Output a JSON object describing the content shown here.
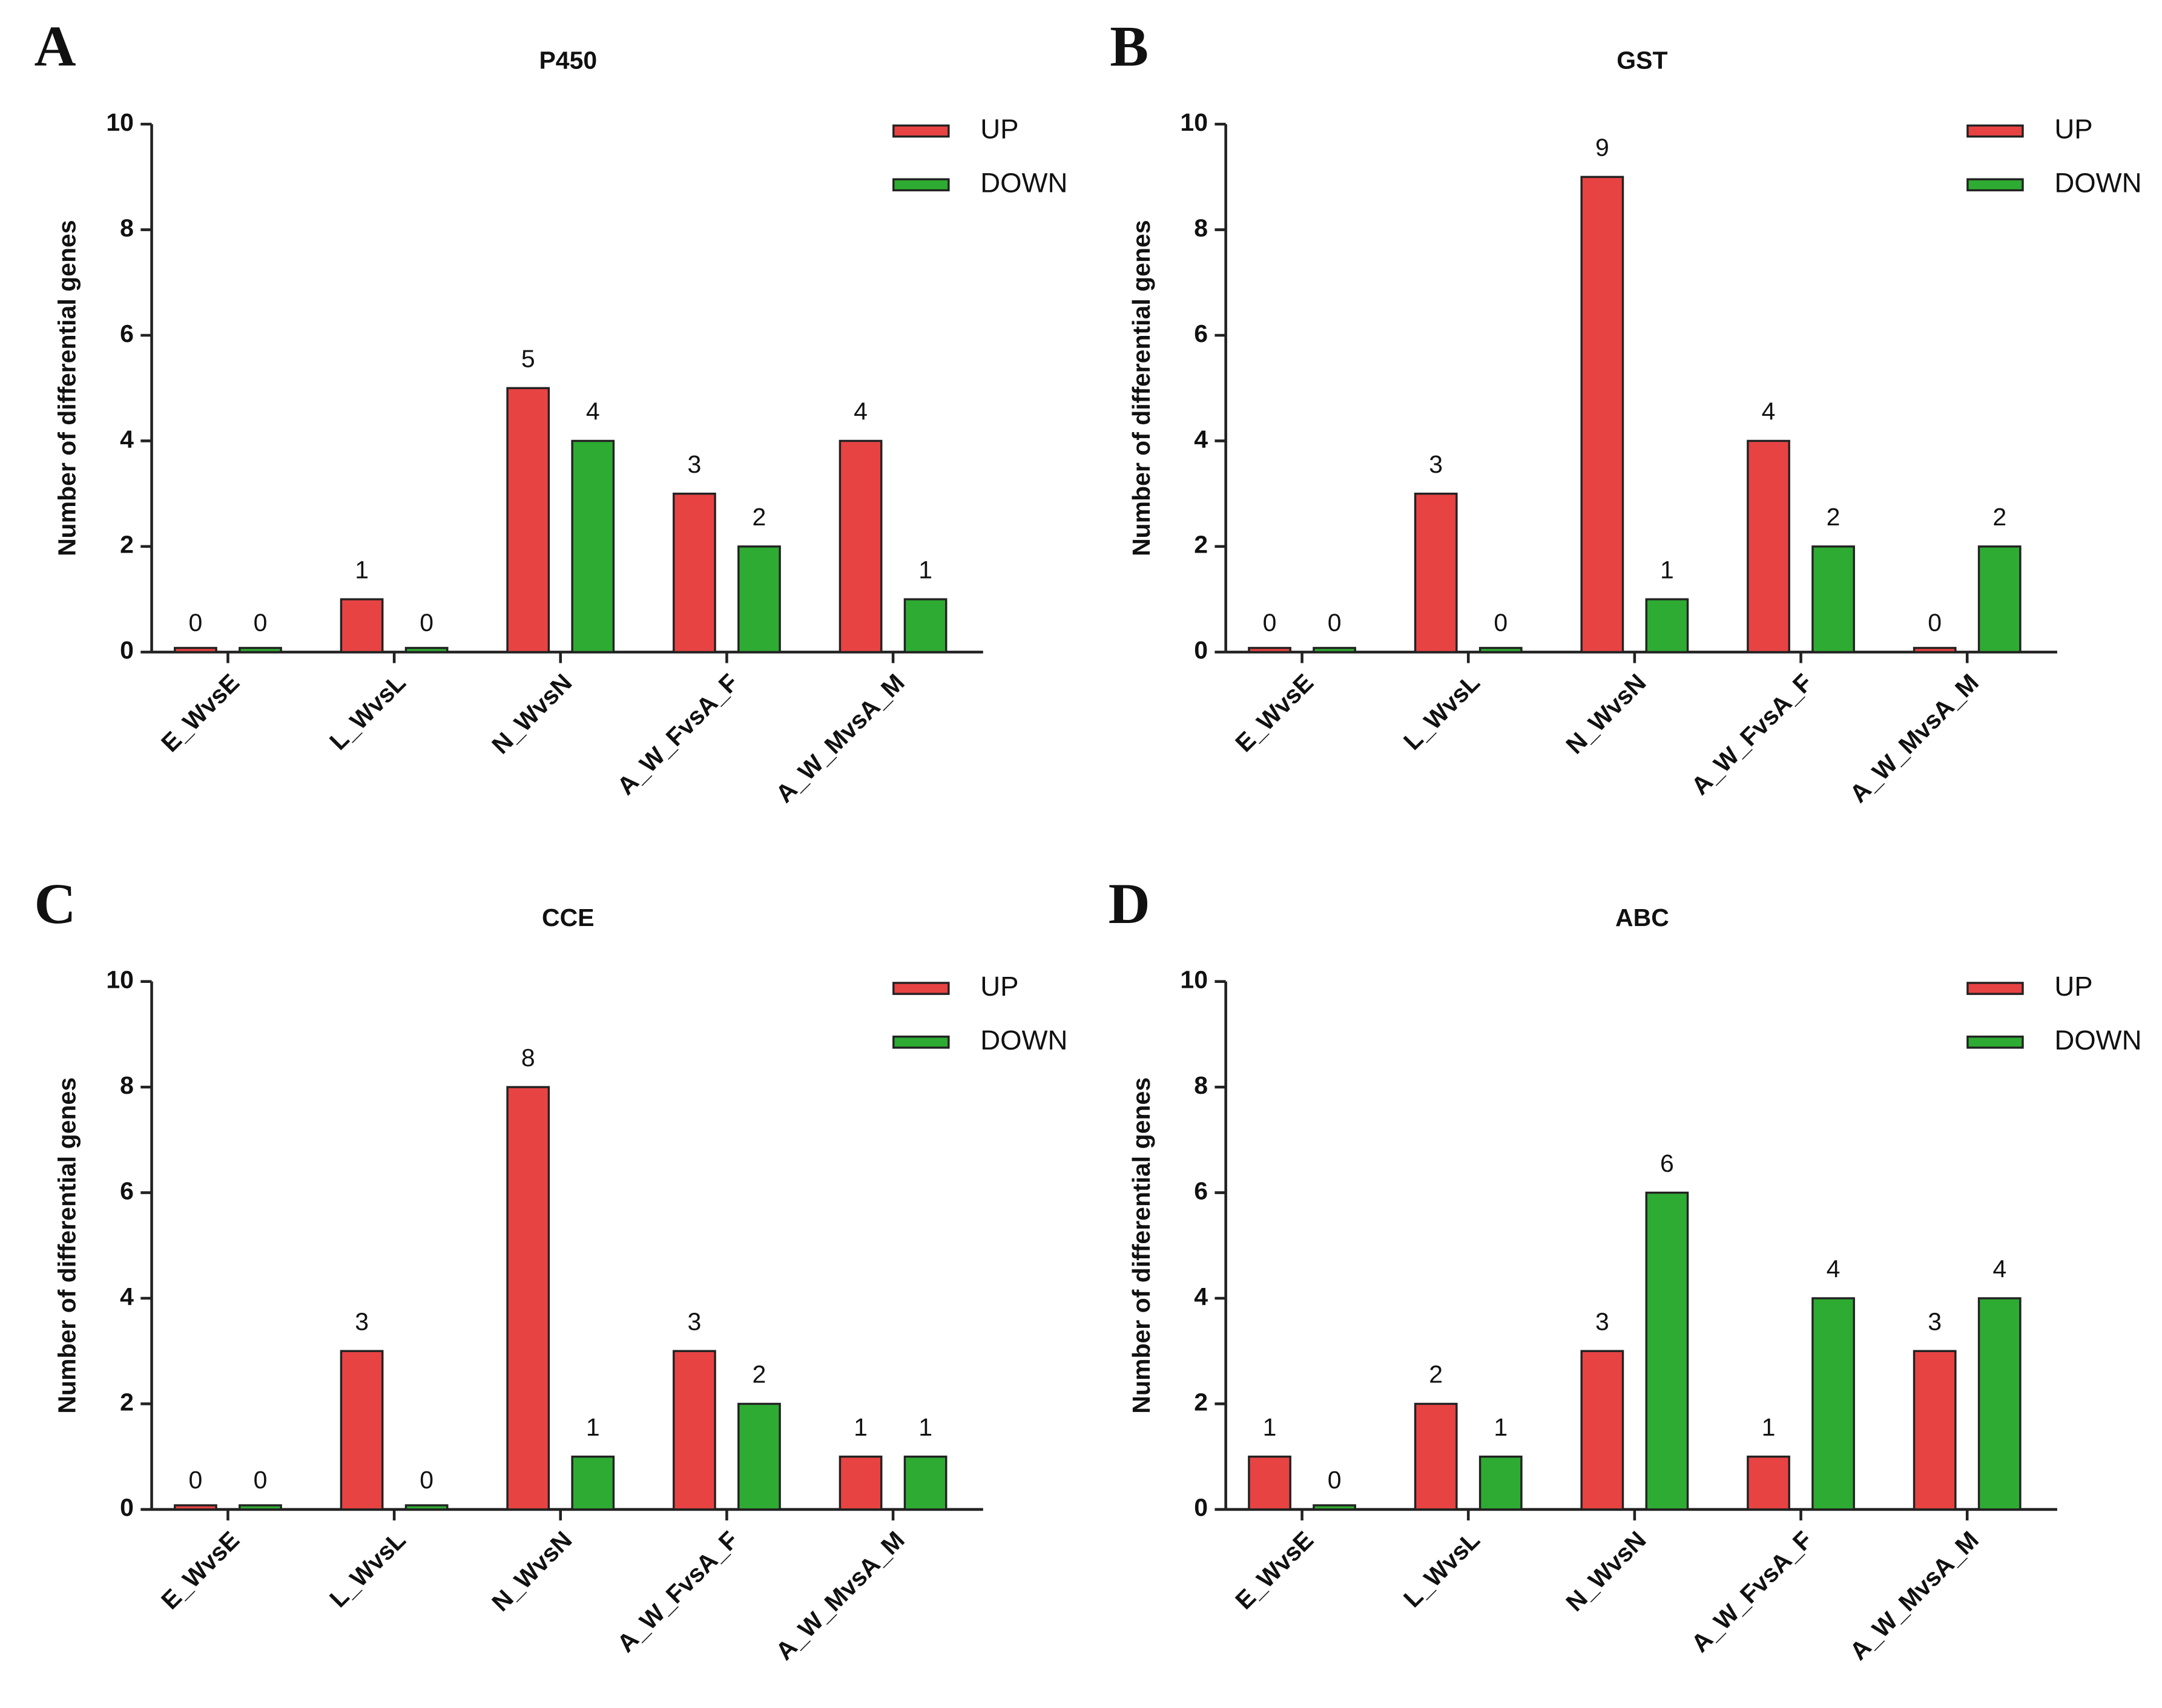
{
  "chart_data": [
    {
      "type": "bar",
      "panel_label": "A",
      "title": "P450",
      "y_label": "Number of differential genes",
      "categories": [
        "E_WvsE",
        "L_WvsL",
        "N_WvsN",
        "A_W_FvsA_F",
        "A_W_MvsA_M"
      ],
      "series": [
        {
          "name": "UP",
          "color": "#e84343",
          "values": [
            0,
            1,
            5,
            3,
            4
          ]
        },
        {
          "name": "DOWN",
          "color": "#2eab32",
          "values": [
            0,
            0,
            4,
            2,
            1
          ]
        }
      ],
      "ylim": [
        0,
        10
      ],
      "yticks": [
        0,
        2,
        4,
        6,
        8,
        10
      ],
      "legend": "top-right"
    },
    {
      "type": "bar",
      "panel_label": "B",
      "title": "GST",
      "y_label": "Number of differential genes",
      "categories": [
        "E_WvsE",
        "L_WvsL",
        "N_WvsN",
        "A_W_FvsA_F",
        "A_W_MvsA_M"
      ],
      "series": [
        {
          "name": "UP",
          "color": "#e84343",
          "values": [
            0,
            3,
            9,
            4,
            0
          ]
        },
        {
          "name": "DOWN",
          "color": "#2eab32",
          "values": [
            0,
            0,
            1,
            2,
            2
          ]
        }
      ],
      "ylim": [
        0,
        10
      ],
      "yticks": [
        0,
        2,
        4,
        6,
        8,
        10
      ],
      "legend": "top-right"
    },
    {
      "type": "bar",
      "panel_label": "C",
      "title": "CCE",
      "y_label": "Number of differential genes",
      "categories": [
        "E_WvsE",
        "L_WvsL",
        "N_WvsN",
        "A_W_FvsA_F",
        "A_W_MvsA_M"
      ],
      "series": [
        {
          "name": "UP",
          "color": "#e84343",
          "values": [
            0,
            3,
            8,
            3,
            1
          ]
        },
        {
          "name": "DOWN",
          "color": "#2eab32",
          "values": [
            0,
            0,
            1,
            2,
            1
          ]
        }
      ],
      "ylim": [
        0,
        10
      ],
      "yticks": [
        0,
        2,
        4,
        6,
        8,
        10
      ],
      "legend": "top-right"
    },
    {
      "type": "bar",
      "panel_label": "D",
      "title": "ABC",
      "y_label": "Number of differential genes",
      "categories": [
        "E_WvsE",
        "L_WvsL",
        "N_WvsN",
        "A_W_FvsA_F",
        "A_W_MvsA_M"
      ],
      "series": [
        {
          "name": "UP",
          "color": "#e84343",
          "values": [
            1,
            2,
            3,
            1,
            3
          ]
        },
        {
          "name": "DOWN",
          "color": "#2eab32",
          "values": [
            0,
            1,
            6,
            4,
            4
          ]
        }
      ],
      "ylim": [
        0,
        10
      ],
      "yticks": [
        0,
        2,
        4,
        6,
        8,
        10
      ],
      "legend": "top-right"
    }
  ]
}
